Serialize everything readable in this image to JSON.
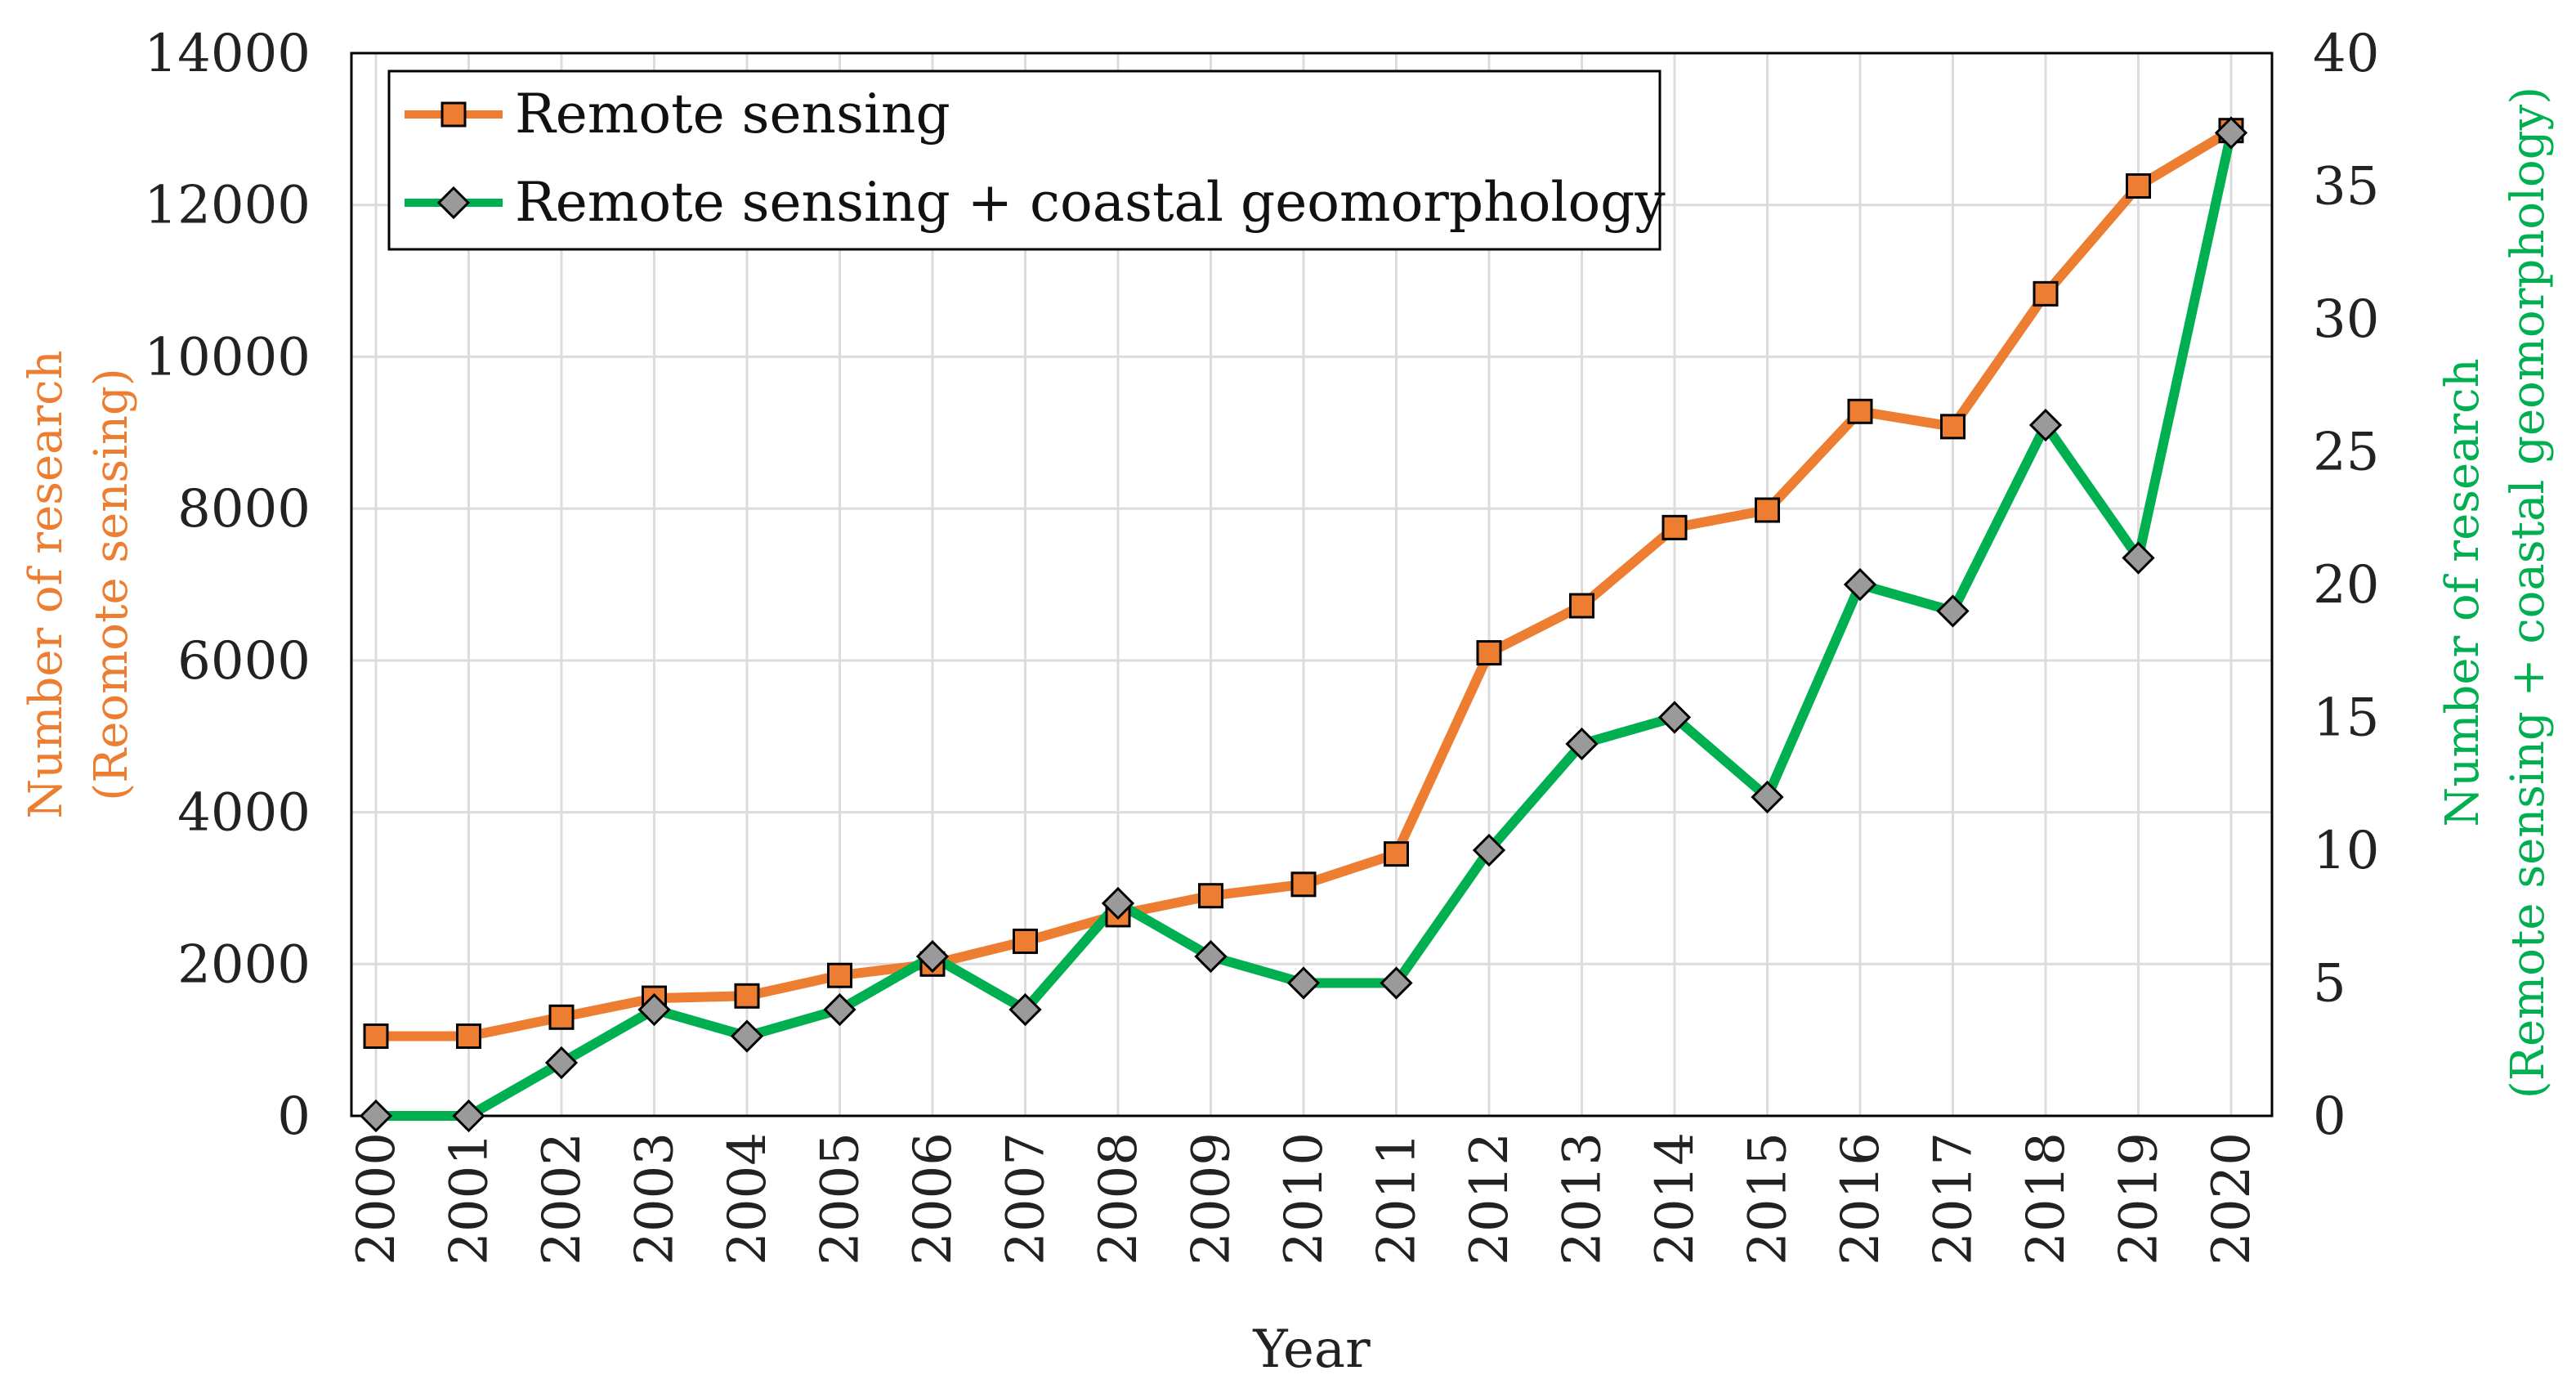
{
  "chart_data": {
    "type": "line",
    "title": "",
    "xlabel": "Year",
    "ylabel_left": [
      "Number of research",
      "(Reomote sensing)"
    ],
    "ylabel_right": [
      "Number of research",
      "(Remote sensing + coastal geomorphology)"
    ],
    "categories": [
      "2000",
      "2001",
      "2002",
      "2003",
      "2004",
      "2005",
      "2006",
      "2007",
      "2008",
      "2009",
      "2010",
      "2011",
      "2012",
      "2013",
      "2014",
      "2015",
      "2016",
      "2017",
      "2018",
      "2019",
      "2020"
    ],
    "ylim_left": [
      0,
      14000
    ],
    "yticks_left": [
      0,
      2000,
      4000,
      6000,
      8000,
      10000,
      12000,
      14000
    ],
    "ylim_right": [
      0,
      40
    ],
    "yticks_right": [
      0,
      5,
      10,
      15,
      20,
      25,
      30,
      35,
      40
    ],
    "grid": true,
    "legend_position": "top-left",
    "series": [
      {
        "name": "Remote sensing",
        "axis": "left",
        "marker": "square",
        "color": "#ed7d31",
        "values": [
          1050,
          1050,
          1300,
          1550,
          1580,
          1850,
          2000,
          2300,
          2650,
          2900,
          3050,
          3450,
          6100,
          6720,
          7750,
          7980,
          9280,
          9080,
          10830,
          12250,
          12980
        ]
      },
      {
        "name": "Remote sensing + coastal geomorphology",
        "axis": "right",
        "marker": "diamond",
        "color": "#00b050",
        "values": [
          0,
          0,
          2,
          4,
          3,
          4,
          6,
          4,
          8,
          6,
          5,
          5,
          10,
          14,
          15,
          12,
          20,
          19,
          26,
          21,
          37
        ]
      }
    ],
    "colors": {
      "left_axis_label": "#ed7d31",
      "right_axis_label": "#00b050",
      "marker_fill_square": "#ed7d31",
      "marker_fill_diamond": "#9a9a9a"
    }
  }
}
